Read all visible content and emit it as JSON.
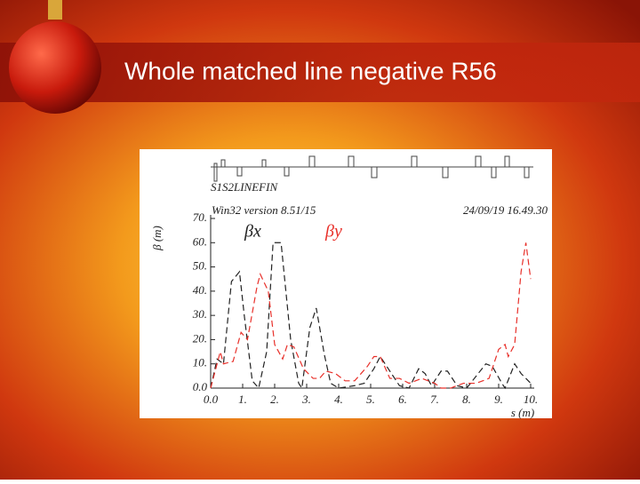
{
  "slide_title": "Whole matched line negative R56",
  "chart_data": {
    "type": "line",
    "beamline": "S1S2LINEFIN",
    "program": "Win32 version 8.51/15",
    "timestamp": "24/09/19 16.49.30",
    "y_label": "β (m)",
    "x_label": "s (m)",
    "xlim": [
      0,
      10
    ],
    "ylim": [
      0,
      70
    ],
    "xticks": [
      {
        "value": 0,
        "label": "0.0"
      },
      {
        "value": 1,
        "label": "1."
      },
      {
        "value": 2,
        "label": "2."
      },
      {
        "value": 3,
        "label": "3."
      },
      {
        "value": 4,
        "label": "4."
      },
      {
        "value": 5,
        "label": "5."
      },
      {
        "value": 6,
        "label": "6."
      },
      {
        "value": 7,
        "label": "7."
      },
      {
        "value": 8,
        "label": "8."
      },
      {
        "value": 9,
        "label": "9."
      },
      {
        "value": 10,
        "label": "10."
      }
    ],
    "yticks": [
      {
        "value": 0,
        "label": "0.0"
      },
      {
        "value": 10,
        "label": "10."
      },
      {
        "value": 20,
        "label": "20."
      },
      {
        "value": 30,
        "label": "30."
      },
      {
        "value": 40,
        "label": "40."
      },
      {
        "value": 50,
        "label": "50."
      },
      {
        "value": 60,
        "label": "60."
      },
      {
        "value": 70,
        "label": "70."
      }
    ],
    "series": [
      {
        "name": "βx",
        "color": "#222222",
        "x": [
          0,
          0.2,
          0.4,
          0.65,
          0.9,
          1.05,
          1.3,
          1.5,
          1.75,
          1.95,
          2.2,
          2.5,
          2.75,
          2.85,
          3.1,
          3.3,
          3.55,
          3.75,
          4.0,
          4.5,
          4.8,
          5.1,
          5.3,
          5.6,
          5.9,
          6.2,
          6.5,
          6.7,
          6.9,
          7.2,
          7.4,
          7.7,
          8.0,
          8.3,
          8.6,
          8.8,
          9.1,
          9.2,
          9.5,
          9.7,
          10
        ],
        "values": [
          0,
          12,
          10,
          44,
          48,
          30,
          3,
          0,
          15,
          60,
          60,
          20,
          2,
          0,
          25,
          33,
          14,
          2,
          0,
          1,
          2,
          8,
          13,
          7,
          1,
          0,
          8,
          6,
          1,
          7,
          7,
          1,
          0,
          5,
          10,
          9,
          2,
          0,
          10,
          6,
          2
        ]
      },
      {
        "name": "βy",
        "color": "#e8302a",
        "x": [
          0,
          0.1,
          0.3,
          0.4,
          0.7,
          0.95,
          1.15,
          1.45,
          1.55,
          1.8,
          2.0,
          2.25,
          2.4,
          2.6,
          2.9,
          3.2,
          3.4,
          3.6,
          3.9,
          4.2,
          4.5,
          4.9,
          5.1,
          5.3,
          5.6,
          5.9,
          6.2,
          6.6,
          7.0,
          7.2,
          7.5,
          7.9,
          8.3,
          8.7,
          9.0,
          9.2,
          9.3,
          9.5,
          9.7,
          9.85,
          10
        ],
        "values": [
          0,
          5,
          15,
          10,
          11,
          23,
          20,
          42,
          47,
          40,
          18,
          12,
          18,
          17,
          8,
          4,
          4,
          7,
          6,
          3,
          3,
          9,
          13,
          13,
          4,
          4,
          2,
          4,
          2,
          0,
          0,
          2,
          2,
          4,
          16,
          18,
          13,
          18,
          48,
          60,
          45
        ]
      }
    ]
  }
}
